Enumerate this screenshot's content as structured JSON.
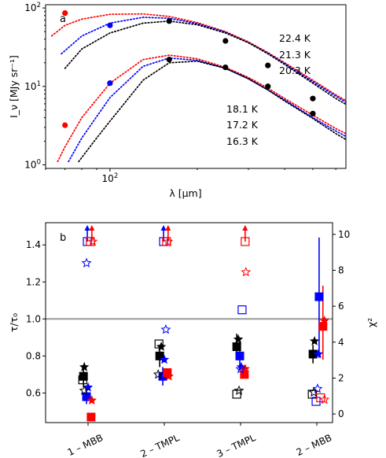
{
  "chart_data": [
    {
      "panel": "a",
      "type": "line",
      "xscale": "log",
      "yscale": "log",
      "xlabel": "λ [μm]",
      "ylabel": "I_ν [MJy sr⁻¹]",
      "xlim": [
        60,
        650
      ],
      "ylim": [
        0.9,
        110
      ],
      "x_ticks": [
        {
          "value": 100,
          "label": "10",
          "exp": "2"
        }
      ],
      "y_ticks": [
        {
          "value": 1,
          "label": "10",
          "exp": "0"
        },
        {
          "value": 10,
          "label": "10",
          "exp": "1"
        },
        {
          "value": 100,
          "label": "10",
          "exp": "2"
        }
      ],
      "temperature_labels": {
        "upper": [
          "22.4 K",
          "21.3 K",
          "20.3 K"
        ],
        "lower": [
          "18.1 K",
          "17.2 K",
          "16.3 K"
        ]
      },
      "series": [
        {
          "color": "#ff0000",
          "group": "upper",
          "points": [
            [
              70,
              86
            ]
          ],
          "curve": [
            [
              63,
              44
            ],
            [
              70,
              60
            ],
            [
              80,
              72
            ],
            [
              100,
              83
            ],
            [
              130,
              84
            ],
            [
              160,
              78
            ],
            [
              200,
              65
            ],
            [
              250,
              50
            ],
            [
              300,
              37
            ],
            [
              350,
              27
            ],
            [
              400,
              20
            ],
            [
              500,
              12
            ],
            [
              600,
              7.8
            ],
            [
              650,
              6.6
            ]
          ]
        },
        {
          "color": "#0000ff",
          "group": "upper",
          "points": [
            [
              100,
              60
            ]
          ],
          "curve": [
            [
              68,
              26
            ],
            [
              80,
              44
            ],
            [
              100,
              64
            ],
            [
              130,
              76
            ],
            [
              160,
              74
            ],
            [
              200,
              63
            ],
            [
              250,
              49
            ],
            [
              300,
              36
            ],
            [
              350,
              26.5
            ],
            [
              400,
              19.5
            ],
            [
              500,
              11.5
            ],
            [
              600,
              7.5
            ],
            [
              650,
              6.3
            ]
          ]
        },
        {
          "color": "#000000",
          "group": "upper",
          "points": [
            [
              160,
              68
            ],
            [
              250,
              38
            ],
            [
              350,
              18.5
            ],
            [
              500,
              7
            ]
          ],
          "curve": [
            [
              70,
              17
            ],
            [
              80,
              30
            ],
            [
              100,
              48
            ],
            [
              130,
              64
            ],
            [
              160,
              68
            ],
            [
              200,
              61
            ],
            [
              250,
              48
            ],
            [
              300,
              36
            ],
            [
              350,
              26
            ],
            [
              400,
              19
            ],
            [
              500,
              11
            ],
            [
              600,
              7
            ],
            [
              650,
              5.9
            ]
          ]
        },
        {
          "color": "#ff0000",
          "group": "lower",
          "points": [
            [
              70,
              3.2
            ]
          ],
          "curve": [
            [
              66,
              1.1
            ],
            [
              70,
              1.7
            ],
            [
              80,
              4
            ],
            [
              100,
              11
            ],
            [
              130,
              22
            ],
            [
              160,
              25
            ],
            [
              200,
              22.5
            ],
            [
              250,
              17.5
            ],
            [
              300,
              13
            ],
            [
              350,
              9.5
            ],
            [
              400,
              7
            ],
            [
              500,
              4.3
            ],
            [
              600,
              2.9
            ],
            [
              650,
              2.5
            ]
          ]
        },
        {
          "color": "#0000ff",
          "group": "lower",
          "points": [
            [
              100,
              11
            ]
          ],
          "curve": [
            [
              72,
              1.1
            ],
            [
              80,
              2.2
            ],
            [
              100,
              7.2
            ],
            [
              130,
              18
            ],
            [
              160,
              23
            ],
            [
              200,
              21.5
            ],
            [
              250,
              17
            ],
            [
              300,
              12.5
            ],
            [
              350,
              9
            ],
            [
              400,
              6.7
            ],
            [
              500,
              4
            ],
            [
              600,
              2.7
            ],
            [
              650,
              2.3
            ]
          ]
        },
        {
          "color": "#000000",
          "group": "lower",
          "points": [
            [
              160,
              22
            ],
            [
              250,
              17.5
            ],
            [
              350,
              10
            ],
            [
              500,
              4.5
            ]
          ],
          "curve": [
            [
              78,
              1.1
            ],
            [
              90,
              2.2
            ],
            [
              100,
              3.6
            ],
            [
              130,
              12
            ],
            [
              160,
              20
            ],
            [
              200,
              21
            ],
            [
              250,
              17
            ],
            [
              300,
              12.5
            ],
            [
              350,
              9
            ],
            [
              400,
              6.5
            ],
            [
              500,
              3.9
            ],
            [
              600,
              2.5
            ],
            [
              650,
              2.1
            ]
          ]
        }
      ]
    },
    {
      "panel": "b",
      "type": "scatter",
      "ylabel_left": "τ/τ₀",
      "ylabel_right": "χ²",
      "ylim_left": [
        0.44,
        1.52
      ],
      "ylim_right": [
        -0.48,
        10.65
      ],
      "y_ticks_left": [
        "0.6",
        "0.8",
        "1.0",
        "1.2",
        "1.4"
      ],
      "y_ticks_right": [
        "0",
        "2",
        "4",
        "6",
        "8",
        "10"
      ],
      "categories": [
        "1 – MBB",
        "2 – TMPL",
        "3 – TMPL",
        "2 – MBB"
      ],
      "reference_line": 1.0,
      "series": [
        {
          "color": "#000000",
          "marker": "square-filled",
          "axis": "left",
          "values": [
            0.69,
            0.8,
            0.85,
            0.81
          ],
          "offsets": [
            -0.06,
            -0.06,
            -0.05,
            -0.05
          ]
        },
        {
          "color": "#0000ff",
          "marker": "square-filled",
          "axis": "left",
          "values": [
            0.58,
            0.69,
            0.8,
            1.12
          ],
          "offsets": [
            -0.02,
            -0.02,
            -0.01,
            0.03
          ]
        },
        {
          "color": "#ff0000",
          "marker": "square-filled",
          "axis": "left",
          "values": [
            0.47,
            0.71,
            0.7,
            0.96
          ],
          "offsets": [
            0.04,
            0.04,
            0.05,
            0.08
          ]
        },
        {
          "color": "#000000",
          "marker": "star-filled",
          "axis": "left",
          "values": [
            0.74,
            0.85,
            0.89,
            0.88
          ],
          "offsets": [
            -0.05,
            -0.04,
            -0.03,
            -0.03
          ]
        },
        {
          "color": "#0000ff",
          "marker": "star-filled",
          "axis": "left",
          "values": [
            0.63,
            0.78,
            0.74,
            0.81
          ],
          "offsets": [
            0.0,
            0.0,
            0.01,
            0.02
          ]
        },
        {
          "color": "#ff0000",
          "marker": "star-filled",
          "axis": "left",
          "values": [
            0.56,
            0.69,
            0.73,
            0.99
          ],
          "offsets": [
            0.05,
            0.06,
            0.06,
            0.1
          ]
        },
        {
          "color": "#000000",
          "marker": "square-open",
          "axis": "right",
          "values": [
            1.9,
            3.9,
            1.1,
            1.1
          ],
          "offsets": [
            -0.07,
            -0.07,
            -0.05,
            -0.06
          ]
        },
        {
          "color": "#0000ff",
          "marker": "square-open",
          "axis": "right",
          "values": [
            9.6,
            9.6,
            5.8,
            0.7
          ],
          "offsets": [
            -0.01,
            -0.01,
            0.02,
            -0.01
          ]
        },
        {
          "color": "#ff0000",
          "marker": "square-open",
          "axis": "right",
          "values": [
            9.6,
            9.6,
            9.6,
            0.9
          ],
          "offsets": [
            0.03,
            0.03,
            0.06,
            0.05
          ]
        },
        {
          "color": "#000000",
          "marker": "star-open",
          "axis": "right",
          "values": [
            1.3,
            2.2,
            1.3,
            1.2
          ],
          "offsets": [
            -0.05,
            -0.08,
            -0.02,
            -0.04
          ]
        },
        {
          "color": "#0000ff",
          "marker": "star-open",
          "axis": "right",
          "values": [
            8.4,
            4.7,
            2.5,
            1.4
          ],
          "offsets": [
            -0.02,
            0.02,
            0.0,
            0.01
          ]
        },
        {
          "color": "#ff0000",
          "marker": "star-open",
          "axis": "right",
          "values": [
            9.6,
            9.6,
            7.9,
            0.8
          ],
          "offsets": [
            0.06,
            0.05,
            0.07,
            0.1
          ]
        }
      ],
      "error_bars": [
        {
          "color": "#000000",
          "category": 0,
          "offset": -0.06,
          "low": 0.63,
          "high": 0.75
        },
        {
          "color": "#0000ff",
          "category": 0,
          "offset": -0.02,
          "low": 0.54,
          "high": 0.62
        },
        {
          "color": "#000000",
          "category": 1,
          "offset": -0.06,
          "low": 0.74,
          "high": 0.86
        },
        {
          "color": "#0000ff",
          "category": 1,
          "offset": -0.02,
          "low": 0.64,
          "high": 0.74
        },
        {
          "color": "#000000",
          "category": 2,
          "offset": -0.05,
          "low": 0.8,
          "high": 0.92
        },
        {
          "color": "#0000ff",
          "category": 2,
          "offset": -0.01,
          "low": 0.74,
          "high": 0.86
        },
        {
          "color": "#000000",
          "category": 3,
          "offset": -0.05,
          "low": 0.76,
          "high": 0.86
        },
        {
          "color": "#0000ff",
          "category": 3,
          "offset": 0.03,
          "low": 0.79,
          "high": 1.44
        },
        {
          "color": "#ff0000",
          "category": 3,
          "offset": 0.08,
          "low": 0.78,
          "high": 1.18
        }
      ],
      "upward_arrows": [
        {
          "color": "#0000ff",
          "category": 0,
          "offset": -0.01
        },
        {
          "color": "#ff0000",
          "category": 0,
          "offset": 0.05
        },
        {
          "color": "#0000ff",
          "category": 1,
          "offset": -0.01
        },
        {
          "color": "#ff0000",
          "category": 1,
          "offset": 0.05
        },
        {
          "color": "#ff0000",
          "category": 2,
          "offset": 0.06
        }
      ]
    }
  ],
  "panel_labels": {
    "a": "a",
    "b": "b"
  }
}
